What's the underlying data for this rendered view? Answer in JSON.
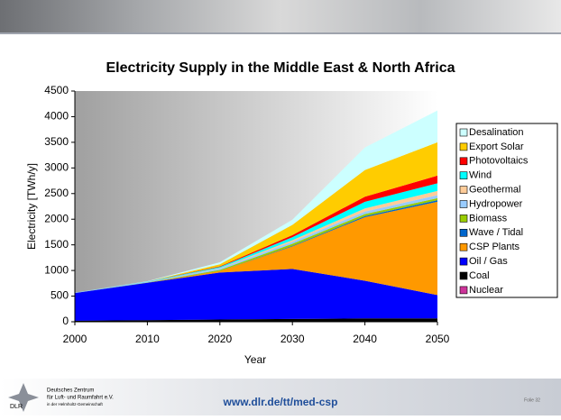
{
  "chart_data": {
    "type": "stacked-area",
    "title": "Electricity Supply in the Middle East & North Africa",
    "x_label": "Year",
    "y_label": "Electricity [TWh/y]",
    "x": [
      2000,
      2010,
      2020,
      2030,
      2040,
      2050
    ],
    "xlim": [
      2000,
      2050
    ],
    "xticks": [
      2000,
      2010,
      2020,
      2030,
      2040,
      2050
    ],
    "ylim": [
      0,
      4500
    ],
    "yticks": [
      0,
      500,
      1000,
      1500,
      2000,
      2500,
      3000,
      3500,
      4000,
      4500
    ],
    "series": [
      {
        "name": "Nuclear",
        "color": "#cc3399",
        "values": [
          0,
          0,
          5,
          5,
          5,
          5
        ]
      },
      {
        "name": "Coal",
        "color": "#000000",
        "values": [
          20,
          30,
          40,
          50,
          60,
          60
        ]
      },
      {
        "name": "Oil / Gas",
        "color": "#0000ff",
        "values": [
          540,
          730,
          915,
          975,
          735,
          455
        ]
      },
      {
        "name": "CSP Plants",
        "color": "#ff9900",
        "values": [
          0,
          0,
          30,
          440,
          1240,
          1820
        ]
      },
      {
        "name": "Wave / Tidal",
        "color": "#0066cc",
        "values": [
          0,
          0,
          0,
          10,
          20,
          30
        ]
      },
      {
        "name": "Biomass",
        "color": "#99cc00",
        "values": [
          0,
          5,
          20,
          40,
          40,
          40
        ]
      },
      {
        "name": "Hydropower",
        "color": "#99ccff",
        "values": [
          10,
          15,
          30,
          40,
          50,
          60
        ]
      },
      {
        "name": "Geothermal",
        "color": "#ffcc99",
        "values": [
          0,
          0,
          10,
          30,
          60,
          80
        ]
      },
      {
        "name": "Wind",
        "color": "#00ffff",
        "values": [
          0,
          5,
          20,
          60,
          130,
          150
        ]
      },
      {
        "name": "Photovoltaics",
        "color": "#ff0000",
        "values": [
          0,
          0,
          10,
          40,
          100,
          150
        ]
      },
      {
        "name": "Export Solar",
        "color": "#ffcc00",
        "values": [
          0,
          0,
          40,
          200,
          520,
          650
        ]
      },
      {
        "name": "Desalination",
        "color": "#ccffff",
        "values": [
          0,
          5,
          40,
          100,
          440,
          620
        ]
      }
    ]
  },
  "footer": {
    "org": [
      "Deutsches Zentrum",
      "für Luft- und Raumfahrt e.V.",
      "in der Helmholtz-Gemeinschaft"
    ],
    "logo": "DLR",
    "url": "www.dlr.de/tt/med-csp",
    "slide": "Folie 32"
  }
}
